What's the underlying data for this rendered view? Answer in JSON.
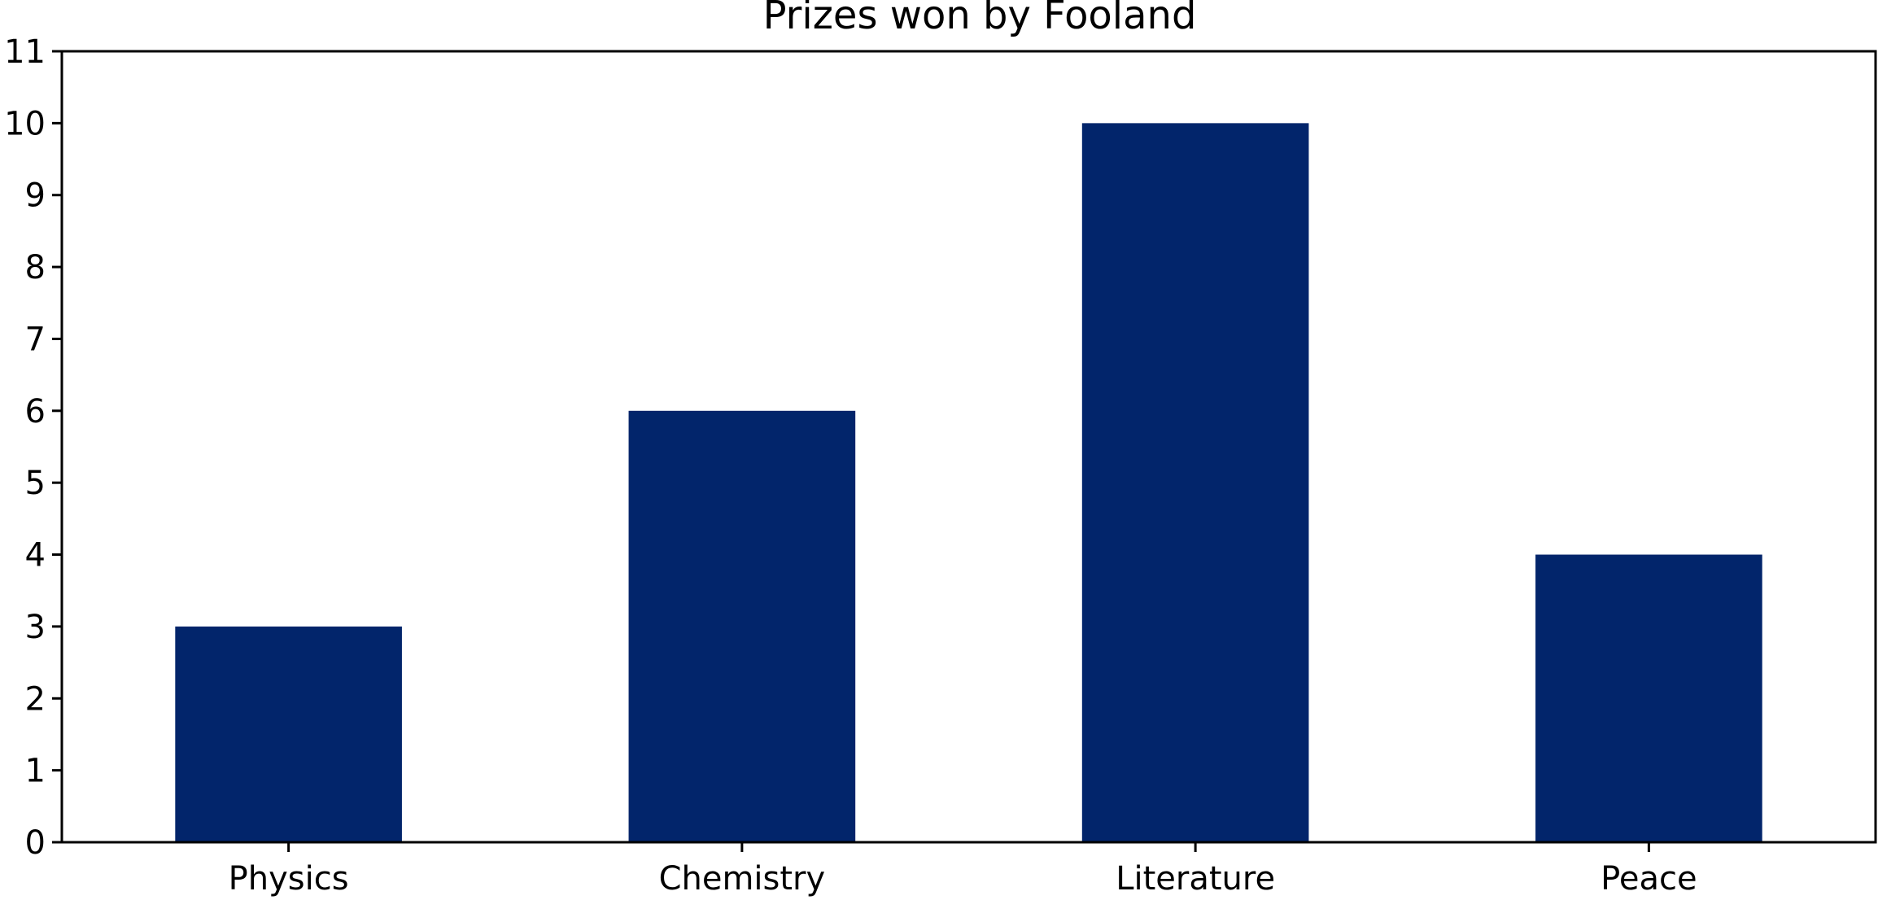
{
  "chart_data": {
    "type": "bar",
    "title": "Prizes won by Fooland",
    "xlabel": "",
    "ylabel": "",
    "categories": [
      "Physics",
      "Chemistry",
      "Literature",
      "Peace"
    ],
    "values": [
      3,
      6,
      10,
      4
    ],
    "ylim": [
      0,
      11
    ],
    "yticks": [
      "0",
      "1",
      "2",
      "3",
      "4",
      "5",
      "6",
      "7",
      "8",
      "9",
      "10",
      "11"
    ],
    "bar_color": "#02256b",
    "grid": false,
    "legend": false
  }
}
